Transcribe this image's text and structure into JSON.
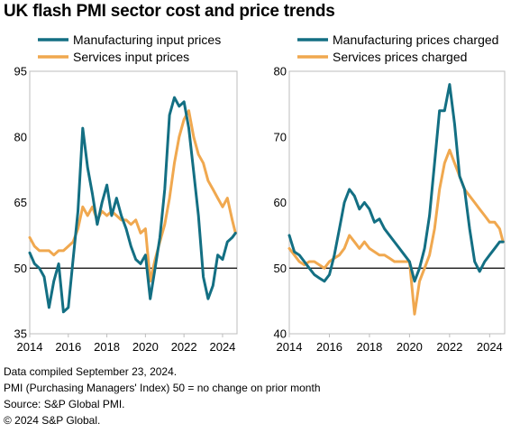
{
  "title": "UK flash PMI sector cost and price trends",
  "colors": {
    "manufacturing": "#136f83",
    "services": "#f0a84f",
    "reference_line": "#000000",
    "frame": "#bdbdbd"
  },
  "chart_data": [
    {
      "type": "line",
      "title": "",
      "xlabel": "",
      "ylabel": "",
      "xlim": [
        2014.0,
        2024.75
      ],
      "ylim": [
        35,
        95
      ],
      "x_ticks": [
        "2014",
        "2016",
        "2018",
        "2020",
        "2022",
        "2024"
      ],
      "y_ticks": [
        "35",
        "50",
        "65",
        "80",
        "95"
      ],
      "reference_line": 50,
      "legend_position": "top",
      "series": [
        {
          "name": "Manufacturing input prices",
          "color": "#136f83",
          "x": [
            2014.0,
            2014.25,
            2014.5,
            2014.75,
            2015.0,
            2015.25,
            2015.5,
            2015.75,
            2016.0,
            2016.25,
            2016.5,
            2016.75,
            2017.0,
            2017.25,
            2017.5,
            2017.75,
            2018.0,
            2018.25,
            2018.5,
            2018.75,
            2019.0,
            2019.25,
            2019.5,
            2019.75,
            2020.0,
            2020.25,
            2020.5,
            2020.75,
            2021.0,
            2021.25,
            2021.5,
            2021.75,
            2022.0,
            2022.25,
            2022.5,
            2022.75,
            2023.0,
            2023.25,
            2023.5,
            2023.75,
            2024.0,
            2024.25,
            2024.5,
            2024.67
          ],
          "values": [
            53.5,
            51,
            50,
            48,
            41,
            47,
            51,
            40,
            41,
            52,
            63,
            82,
            73,
            67,
            60,
            65,
            69,
            62,
            66,
            62,
            59,
            55,
            52,
            51,
            53,
            43,
            50,
            57,
            68,
            85,
            89,
            87,
            88,
            82,
            72,
            62,
            48,
            43,
            46,
            53,
            52,
            56,
            57,
            58
          ]
        },
        {
          "name": "Services input prices",
          "color": "#f0a84f",
          "x": [
            2014.0,
            2014.25,
            2014.5,
            2014.75,
            2015.0,
            2015.25,
            2015.5,
            2015.75,
            2016.0,
            2016.25,
            2016.5,
            2016.75,
            2017.0,
            2017.25,
            2017.5,
            2017.75,
            2018.0,
            2018.25,
            2018.5,
            2018.75,
            2019.0,
            2019.25,
            2019.5,
            2019.75,
            2020.0,
            2020.25,
            2020.5,
            2020.75,
            2021.0,
            2021.25,
            2021.5,
            2021.75,
            2022.0,
            2022.25,
            2022.5,
            2022.75,
            2023.0,
            2023.25,
            2023.5,
            2023.75,
            2024.0,
            2024.25,
            2024.5,
            2024.67
          ],
          "values": [
            57,
            55,
            54,
            54,
            54,
            53,
            54,
            54,
            55,
            56,
            59,
            64,
            62,
            64,
            61,
            63,
            62,
            63,
            62,
            61,
            61,
            60,
            61,
            58,
            59,
            47,
            52,
            56,
            60,
            66,
            74,
            80,
            84,
            86,
            80,
            76,
            74,
            70,
            68,
            66,
            64,
            66,
            61,
            58
          ]
        }
      ]
    },
    {
      "type": "line",
      "title": "",
      "xlabel": "",
      "ylabel": "",
      "xlim": [
        2014.0,
        2024.75
      ],
      "ylim": [
        40,
        80
      ],
      "x_ticks": [
        "2014",
        "2016",
        "2018",
        "2020",
        "2022",
        "2024"
      ],
      "y_ticks": [
        "40",
        "50",
        "60",
        "70",
        "80"
      ],
      "reference_line": 50,
      "legend_position": "top",
      "series": [
        {
          "name": "Manufacturing prices charged",
          "color": "#136f83",
          "x": [
            2014.0,
            2014.25,
            2014.5,
            2014.75,
            2015.0,
            2015.25,
            2015.5,
            2015.75,
            2016.0,
            2016.25,
            2016.5,
            2016.75,
            2017.0,
            2017.25,
            2017.5,
            2017.75,
            2018.0,
            2018.25,
            2018.5,
            2018.75,
            2019.0,
            2019.25,
            2019.5,
            2019.75,
            2020.0,
            2020.25,
            2020.5,
            2020.75,
            2021.0,
            2021.25,
            2021.5,
            2021.75,
            2022.0,
            2022.25,
            2022.5,
            2022.75,
            2023.0,
            2023.25,
            2023.5,
            2023.75,
            2024.0,
            2024.25,
            2024.5,
            2024.67
          ],
          "values": [
            55,
            52.5,
            52,
            51,
            50,
            49,
            48.5,
            48,
            49,
            52,
            56,
            60,
            62,
            61,
            59,
            60,
            59,
            57,
            57.5,
            56,
            55,
            54,
            53,
            52,
            51,
            48,
            50,
            53,
            58,
            66,
            74,
            74,
            78,
            72,
            64,
            62,
            56,
            51,
            49.5,
            51,
            52,
            53,
            54,
            54
          ]
        },
        {
          "name": "Services prices charged",
          "color": "#f0a84f",
          "x": [
            2014.0,
            2014.25,
            2014.5,
            2014.75,
            2015.0,
            2015.25,
            2015.5,
            2015.75,
            2016.0,
            2016.25,
            2016.5,
            2016.75,
            2017.0,
            2017.25,
            2017.5,
            2017.75,
            2018.0,
            2018.25,
            2018.5,
            2018.75,
            2019.0,
            2019.25,
            2019.5,
            2019.75,
            2020.0,
            2020.25,
            2020.5,
            2020.75,
            2021.0,
            2021.25,
            2021.5,
            2021.75,
            2022.0,
            2022.25,
            2022.5,
            2022.75,
            2023.0,
            2023.25,
            2023.5,
            2023.75,
            2024.0,
            2024.25,
            2024.5,
            2024.67
          ],
          "values": [
            53,
            52,
            51,
            50.5,
            51,
            51,
            50.5,
            50,
            51,
            51.5,
            52,
            53,
            55,
            54,
            53,
            54,
            53,
            52.5,
            52,
            52,
            51.5,
            51,
            51,
            51,
            51,
            43,
            48,
            50,
            52,
            56,
            62,
            66,
            68,
            66,
            64,
            62,
            61,
            60,
            59,
            58,
            57,
            57,
            56,
            54
          ]
        }
      ]
    }
  ],
  "footer": {
    "line1": "Data compiled September 23, 2024.",
    "line2": "PMI (Purchasing Managers' Index) 50 = no change on prior month",
    "line3": "Source: S&P Global PMI.",
    "line4": "© 2024 S&P Global."
  }
}
